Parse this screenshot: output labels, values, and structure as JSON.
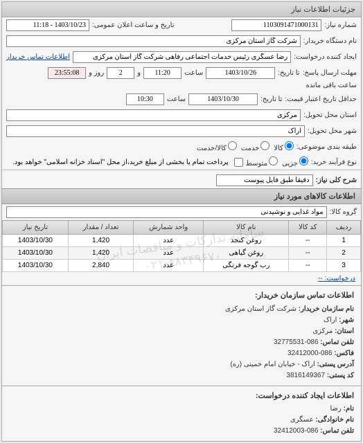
{
  "panel": {
    "title": "جزئیات اطلاعات نیاز"
  },
  "fields": {
    "need_no_label": "شماره نیاز:",
    "need_no": "1103091471000131",
    "announce_label": "تاریخ و ساعت اعلان عمومی:",
    "announce": "1403/10/23 - 11:18",
    "buyer_org_label": "نام دستگاه خریدار:",
    "buyer_org": "شرکت گاز استان مرکزی",
    "requester_label": "ایجاد کننده درخواست:",
    "requester": "رضا عسگری رئیس خدمات اجتماعی رفاهی شرکت گاز استان مرکزی",
    "contact_link": "اطلاعات تماس خریدار",
    "deadline_send_label": "مهلت ارسال پاسخ:",
    "until_label": "تا تاریخ:",
    "date1": "1403/10/26",
    "time_lbl": "ساعت",
    "time1": "11:20",
    "and": "و",
    "days": "2",
    "day_lbl": "روز و",
    "countdown": "23:55:08",
    "remaining": "ساعت باقی مانده",
    "validity_label": "حداقل تاریخ اعتبار قیمت:",
    "until_label2": "تا تاریخ:",
    "date2": "1403/10/30",
    "time2": "10:30",
    "province_label": "استان محل تحویل:",
    "province": "مرکزی",
    "city_label": "شهر محل تحویل:",
    "city": "اراک",
    "category_label": "طبقه بندی موضوعی:",
    "cat_opts": {
      "goods": "کالا",
      "service": "خدمت",
      "both": "کالا/خدمت"
    },
    "process_label": "نوع فرآیند خرید:",
    "proc_opts": {
      "partial": "جزیی",
      "medium": "متوسط"
    },
    "process_note": "پرداخت تمام یا بخشی از مبلغ خرید،از محل \"اسناد خزانه اسلامی\" خواهد بود.",
    "desc_label": "شرح کلی نیاز:",
    "desc": "دقیقا طبق فایل پیوست",
    "items_section": "اطلاعات کالاهای مورد نیاز",
    "group_label": "گروه کالا:",
    "group": "مواد غذایی و نوشیدنی"
  },
  "table": {
    "columns": [
      "ردیف",
      "کد کالا",
      "نام کالا",
      "واحد شمارش",
      "تعداد / مقدار",
      "تاریخ نیاز"
    ],
    "rows": [
      [
        "1",
        "--",
        "روغن کنجد",
        "عدد",
        "1,420",
        "1403/10/30"
      ],
      [
        "2",
        "--",
        "روغن گیاهی",
        "عدد",
        "1,420",
        "1403/10/30"
      ],
      [
        "3",
        "--",
        "رب گوجه فرنگی",
        "عدد",
        "2,840",
        "1403/10/30"
      ]
    ]
  },
  "watermark": {
    "line1": "سامانه تدارکات و مناقصات ایران",
    "line2": "۰۲۱-۸۸۳۴۹۶۷۰"
  },
  "buyer_info": {
    "header": "اطلاعات تماس سازمان خریدار:",
    "org_lbl": "نام سازمان خریدار:",
    "org": "شرکت گاز استان مرکزی",
    "city_lbl": "شهر:",
    "city": "اراک",
    "province_lbl": "استان:",
    "province": "مرکزی",
    "phone_lbl": "تلفن تماس:",
    "phone": "086-32775531",
    "fax_lbl": "فاکس:",
    "fax": "086-32412000",
    "addr_lbl": "آدرس پستی:",
    "addr": "اراک - خیابان امام خمینی (ره)",
    "zip_lbl": "کد پستی:",
    "zip": "3816149367"
  },
  "requester_info": {
    "header": "اطلاعات ایجاد کننده درخواست:",
    "fname_lbl": "نام:",
    "fname": "رضا",
    "lname_lbl": "نام خانوادگی:",
    "lname": "عسگری",
    "phone_lbl": "تلفن تماس:",
    "phone": "086-32412003"
  },
  "request_link": "درخواست: --"
}
